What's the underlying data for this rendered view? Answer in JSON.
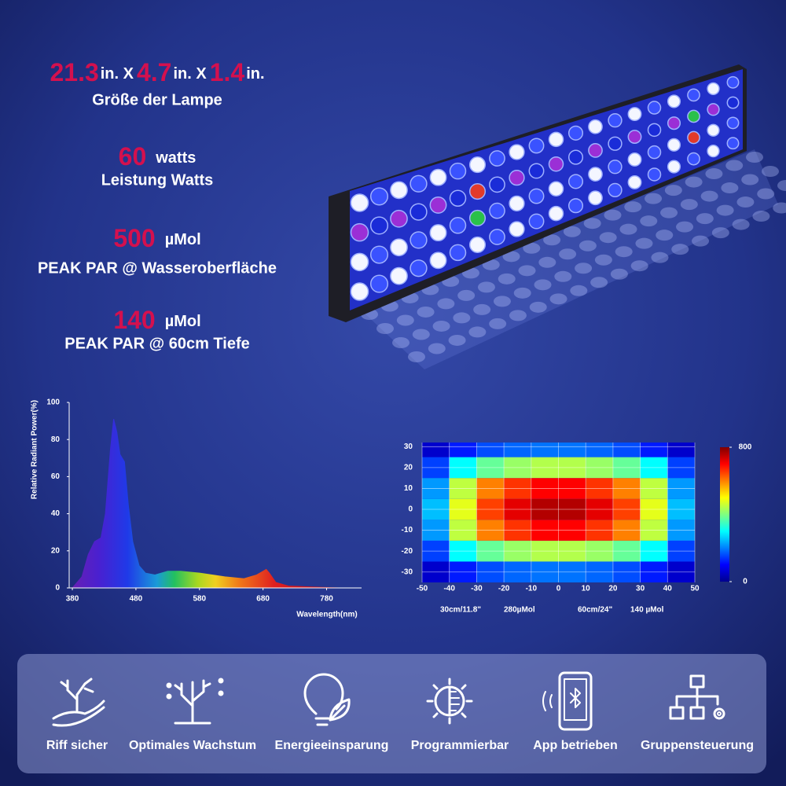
{
  "specs": [
    {
      "segments": [
        "21.3",
        "in. X",
        "4.7",
        "in. X",
        "1.4",
        "in."
      ],
      "label": "Größe der Lampe"
    },
    {
      "segments": [
        "60",
        "watts"
      ],
      "label": "Leistung Watts"
    },
    {
      "segments": [
        "500",
        "µMol"
      ],
      "label": "PEAK PAR @ Wasseroberfläche"
    },
    {
      "segments": [
        "140",
        "µMol"
      ],
      "label": "PEAK PAR @ 60cm Tiefe"
    }
  ],
  "chart_data": [
    {
      "type": "area",
      "y_label": "Relative Radiant Power(%)",
      "x_label": "Wavelength(nm)",
      "x": [
        380,
        395,
        405,
        415,
        425,
        432,
        440,
        445,
        450,
        455,
        462,
        468,
        475,
        485,
        495,
        510,
        530,
        550,
        580,
        620,
        650,
        670,
        680,
        685,
        690,
        700,
        720,
        760,
        800
      ],
      "values": [
        0,
        6,
        18,
        25,
        27,
        40,
        75,
        91,
        84,
        72,
        68,
        45,
        25,
        12,
        8,
        7,
        9,
        9,
        8,
        6,
        5,
        7,
        9,
        10,
        8,
        3,
        1,
        0.5,
        0
      ],
      "xlim": [
        375,
        835
      ],
      "ylim": [
        0,
        100
      ],
      "xticks": [
        380,
        480,
        580,
        680,
        780
      ],
      "yticks": [
        0,
        20,
        40,
        60,
        80,
        100
      ]
    },
    {
      "type": "heatmap",
      "xbins": [
        -50,
        -40,
        -30,
        -20,
        -10,
        0,
        10,
        20,
        30,
        40,
        50
      ],
      "ybins": [
        -35,
        -25,
        -15,
        -5,
        5,
        15,
        25,
        32
      ],
      "values": [
        [
          60,
          120,
          160,
          180,
          190,
          190,
          180,
          160,
          120,
          60
        ],
        [
          150,
          300,
          380,
          420,
          440,
          440,
          420,
          380,
          300,
          150
        ],
        [
          220,
          450,
          600,
          660,
          700,
          700,
          660,
          600,
          450,
          220
        ],
        [
          250,
          480,
          650,
          720,
          760,
          760,
          720,
          650,
          480,
          250
        ],
        [
          220,
          450,
          600,
          660,
          700,
          700,
          660,
          600,
          450,
          220
        ],
        [
          150,
          300,
          380,
          420,
          440,
          440,
          420,
          380,
          300,
          150
        ],
        [
          60,
          120,
          160,
          180,
          190,
          190,
          180,
          160,
          120,
          60
        ]
      ],
      "xlim": [
        -50,
        50
      ],
      "ylim": [
        -35,
        32
      ],
      "xticks": [
        -50,
        -40,
        -30,
        -20,
        -10,
        0,
        10,
        20,
        30,
        40,
        50
      ],
      "yticks": [
        -30,
        -20,
        -10,
        0,
        10,
        20,
        30
      ],
      "clim": [
        0,
        800
      ],
      "cticks": [
        0,
        800
      ],
      "colormap": "jet",
      "grid": true,
      "annotations": [
        "30cm/11.8\"",
        "280µMol",
        "60cm/24\"",
        "140 µMol"
      ]
    }
  ],
  "features": [
    "Riff sicher",
    "Optimales Wachstum",
    "Energieeinsparung",
    "Programmierbar",
    "App betrieben",
    "Gruppensteuerung"
  ]
}
